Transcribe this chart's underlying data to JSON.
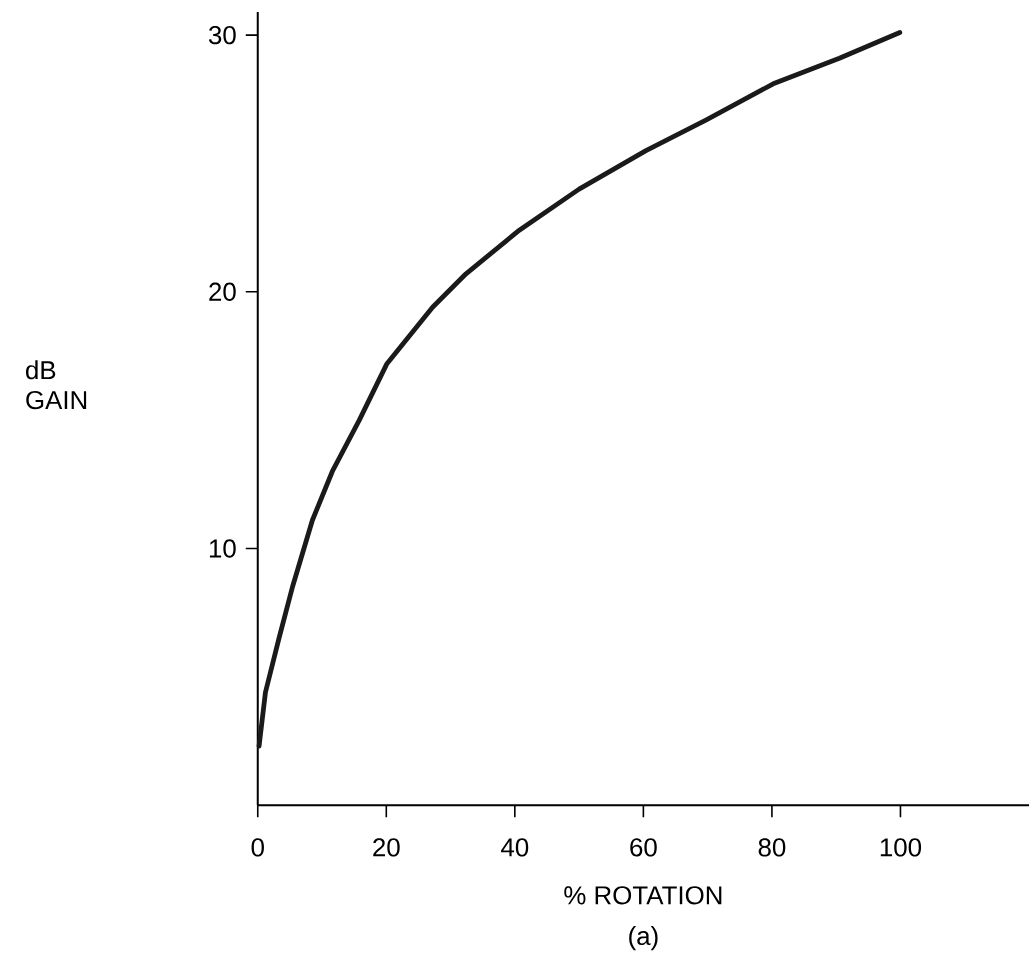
{
  "chart_data": {
    "type": "line",
    "xlabel": "% ROTATION",
    "ylabel": "dB GAIN",
    "annotations": [
      "(a)"
    ],
    "x": [
      0.2,
      1.2,
      3.3,
      5.4,
      8.5,
      11.6,
      15.8,
      20.1,
      27.2,
      32.4,
      40.7,
      50,
      60.4,
      69.8,
      80.2,
      90.5,
      99.9
    ],
    "series": [
      {
        "color": "#1a1a1a",
        "values": [
          2.3,
          4.4,
          6.5,
          8.5,
          11.1,
          13.0,
          15.0,
          17.2,
          19.4,
          20.7,
          22.4,
          24.0,
          25.5,
          26.7,
          28.1,
          29.1,
          30.1
        ]
      }
    ],
    "xlim": [
      0,
      120
    ],
    "ylim": [
      0,
      30.9
    ],
    "xticks": [
      0,
      20,
      40,
      60,
      80,
      100
    ],
    "yticks": [
      10,
      20,
      30
    ]
  }
}
